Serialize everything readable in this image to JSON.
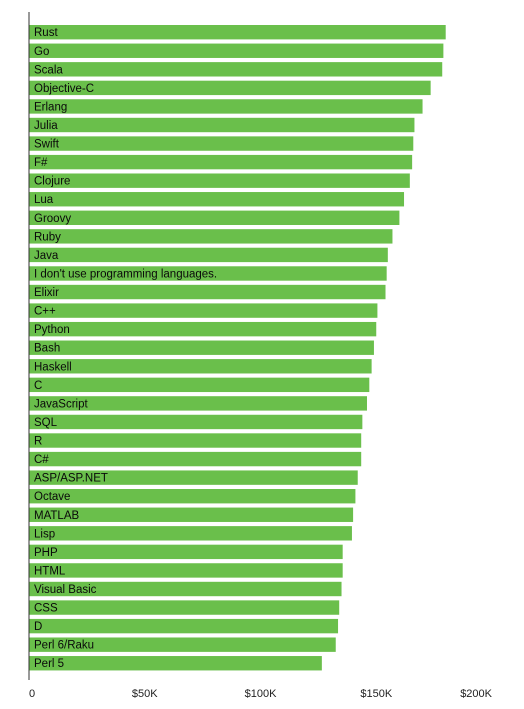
{
  "chart_data": {
    "type": "bar",
    "orientation": "horizontal",
    "title": "",
    "xlabel": "",
    "ylabel": "",
    "xlim": [
      0,
      200000
    ],
    "x_ticks": [
      0,
      50000,
      100000,
      150000,
      200000
    ],
    "x_tick_labels": [
      "0",
      "$50K",
      "$100K",
      "$150K",
      "$200K"
    ],
    "grid": false,
    "legend": "none",
    "bar_color": "#6abf4b",
    "categories": [
      "Rust",
      "Go",
      "Scala",
      "Objective-C",
      "Erlang",
      "Julia",
      "Swift",
      "F#",
      "Clojure",
      "Lua",
      "Groovy",
      "Ruby",
      "Java",
      "I don't use programming languages.",
      "Elixir",
      "C++",
      "Python",
      "Bash",
      "Haskell",
      "C",
      "JavaScript",
      "SQL",
      "R",
      "C#",
      "ASP/ASP.NET",
      "Octave",
      "MATLAB",
      "Lisp",
      "PHP",
      "HTML",
      "Visual Basic",
      "CSS",
      "D",
      "Perl 6/Raku",
      "Perl 5"
    ],
    "values": [
      180000,
      179000,
      178500,
      173500,
      170000,
      166500,
      166000,
      165500,
      164500,
      162000,
      160000,
      157000,
      155000,
      154500,
      154000,
      150500,
      150000,
      149000,
      148000,
      147000,
      146000,
      144000,
      143500,
      143500,
      142000,
      141000,
      140000,
      139500,
      135500,
      135500,
      135000,
      134000,
      133500,
      132500,
      126500
    ]
  }
}
